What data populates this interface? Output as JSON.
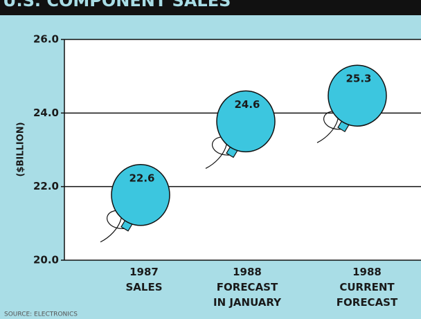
{
  "chart_data": {
    "type": "balloon",
    "title": "U.S. COMPONENT SALES",
    "y_label": "($BILLION)",
    "categories": [
      "1987\nSALES",
      "1988\nFORECAST\nIN JANUARY",
      "1988\nCURRENT\nFORECAST"
    ],
    "values": [
      22.6,
      24.6,
      25.3
    ],
    "color": "#3cc6df",
    "ylim": [
      20,
      26
    ],
    "yticks": [
      {
        "value": 20,
        "label": "20.0"
      },
      {
        "value": 22,
        "label": "22.0"
      },
      {
        "value": 24,
        "label": "24.0"
      },
      {
        "value": 26,
        "label": "26.0"
      }
    ],
    "grid": true,
    "source": "SOURCE: ELECTRONICS"
  }
}
